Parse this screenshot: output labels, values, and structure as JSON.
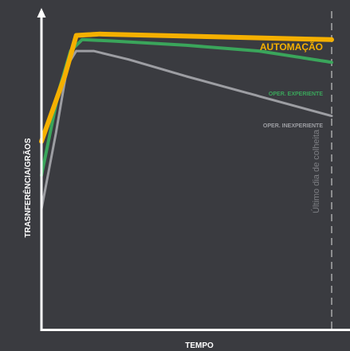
{
  "chart_data": {
    "type": "line",
    "xlabel": "TEMPO",
    "ylabel": "TRASNFERÊNCIA/GRÃOS",
    "xlim": [
      0,
      100
    ],
    "ylim": [
      0,
      100
    ],
    "grid": false,
    "annotations": {
      "end_marker": "Último dia de colheita"
    },
    "series": [
      {
        "name": "AUTOMAÇÃO",
        "color": "#f5b000",
        "points": [
          [
            0,
            57
          ],
          [
            8,
            80
          ],
          [
            12,
            94.5
          ],
          [
            20,
            95
          ],
          [
            100,
            93
          ]
        ]
      },
      {
        "name": "OPER. EXPERIENTE",
        "color": "#3aa55b",
        "points": [
          [
            0,
            45
          ],
          [
            6,
            75
          ],
          [
            10,
            89
          ],
          [
            14,
            93
          ],
          [
            25,
            92.5
          ],
          [
            50,
            91
          ],
          [
            75,
            89
          ],
          [
            100,
            85
          ]
        ]
      },
      {
        "name": "OPER. INEXPERIENTE",
        "color": "#9d9ea3",
        "points": [
          [
            0,
            33
          ],
          [
            5,
            60
          ],
          [
            9,
            84
          ],
          [
            12,
            89
          ],
          [
            18,
            89
          ],
          [
            30,
            86
          ],
          [
            50,
            80
          ],
          [
            75,
            73
          ],
          [
            100,
            66
          ]
        ]
      }
    ]
  }
}
